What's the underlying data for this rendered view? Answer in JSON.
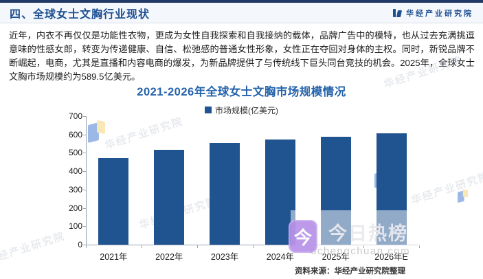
{
  "header": {
    "title": "四、全球女士文胸行业现状",
    "logo_text": "华经产业研究院"
  },
  "paragraph": "近年，内衣不再仅仅是功能性衣物，更成为女性自我探索和自我接纳的载体，品牌广告中的模特，也从过去充满挑逗意味的性感女郎，转变为传递健康、自信、松弛感的普通女性形象，女性正在夺回对身体的主权。同时，新锐品牌不断崛起，电商，尤其是直播和内容电商的爆发，为新品牌提供了与传统线下巨头同台竞技的机会。2025年，全球女士文胸市场规模约为589.5亿美元。",
  "chart_data": {
    "type": "bar",
    "title": "2021-2026年全球女士文胸市场规模情况",
    "legend": "市场规模(亿美元)",
    "categories": [
      "2021年",
      "2022年",
      "2023年",
      "2024年",
      "2025年",
      "2026年E"
    ],
    "values": [
      473,
      516,
      553,
      574,
      589.5,
      607
    ],
    "ylim": [
      0,
      700
    ],
    "ytick_step": 100,
    "grid": false,
    "legend_position": "top",
    "bar_color": "#205490"
  },
  "watermarks": {
    "brand": "华经产业研究院",
    "overlay_icon_char": "今",
    "overlay_title": "今日热榜",
    "overlay_domain": "ochengchuan.com"
  },
  "source": "资料来源：华经产业研究院整理",
  "colors": {
    "accent_blue": "#1d4f91",
    "chart_title_blue": "#2563ab",
    "bar_blue": "#205490",
    "top_strip": "#1f3864",
    "overlay_purple": "#b48ce6"
  }
}
